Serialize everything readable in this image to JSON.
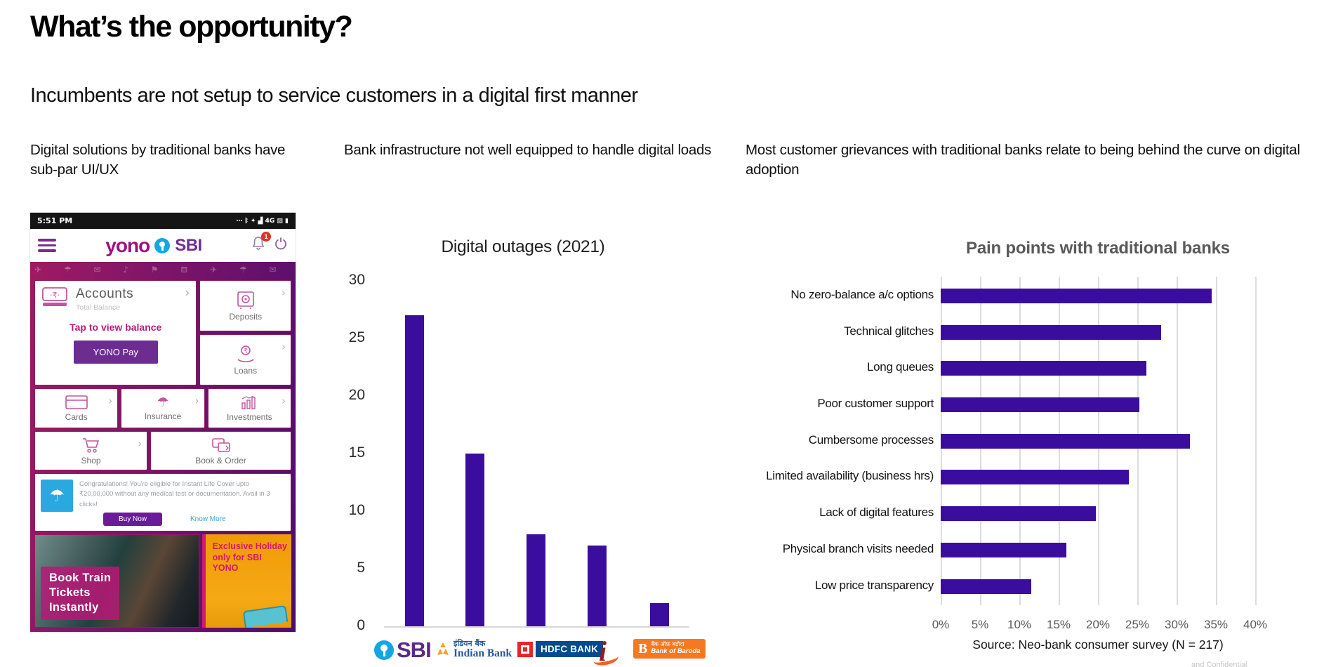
{
  "page": {
    "title": "What’s the opportunity?",
    "subtitle": "Incumbents are not setup to service customers in a digital first manner",
    "watermark": "and Confidential"
  },
  "columns": {
    "left_header": "Digital solutions by traditional banks have sub-par UI/UX",
    "middle_header": "Bank infrastructure not well equipped to handle digital loads",
    "right_header": "Most customer grievances with traditional banks relate to being behind the curve on digital adoption"
  },
  "phone": {
    "status": {
      "time": "5:51 PM",
      "icons": "⋯ ᛒ ✦ ▟ 4G ▨ ▮"
    },
    "header": {
      "brand": "yono",
      "bank": "SBI",
      "badge": "1"
    },
    "accounts": {
      "title": "Accounts",
      "subtitle": "Total Balance",
      "tap": "Tap to view balance",
      "pay_button": "YONO Pay",
      "chevron": "›"
    },
    "tiles": {
      "deposits": "Deposits",
      "loans": "Loans",
      "cards": "Cards",
      "insurance": "Insurance",
      "investments": "Investments",
      "shop": "Shop",
      "book": "Book & Order",
      "chevron": "›"
    },
    "offer": {
      "icon_glyph": "☂",
      "text": "Congratulations! You're eligible for Instant Life Cover upto ₹20,00,000 without any medical test or documentation. Avail in 3 clicks!",
      "buy_button": "Buy Now",
      "know_link": "Know More"
    },
    "promos": {
      "train": "Book Train\nTickets\nInstantly",
      "holiday": "Exclusive Holiday\nonly for SBI YONO"
    }
  },
  "logos": {
    "sbi": "SBI",
    "indian_hi": "इंडियन बैंक",
    "indian_en": "Indian Bank",
    "hdfc": "HDFC BANK",
    "icici": "i",
    "bob_sym": "B",
    "bob_hi": "बैंक ऑफ़ बड़ौदा",
    "bob_en": "Bank of Baroda"
  },
  "colors": {
    "bar": "#3b0d9e",
    "gridline": "#dcdcdc",
    "yono_magenta": "#a1117e",
    "sbi_blue": "#12a7e3",
    "hdfc_navy": "#004a8f",
    "bob_orange": "#f47920"
  },
  "chart_data": [
    {
      "type": "bar",
      "title": "Digital outages (2021)",
      "categories": [
        "SBI",
        "Indian Bank",
        "HDFC Bank",
        "ICICI Bank",
        "Bank of Baroda"
      ],
      "values": [
        27,
        15,
        8,
        7,
        2
      ],
      "xlabel": "",
      "ylabel": "",
      "ylim": [
        0,
        30
      ],
      "yticks": [
        0,
        5,
        10,
        15,
        20,
        25,
        30
      ],
      "grid": false,
      "bar_color": "#3b0d9e"
    },
    {
      "type": "bar-horizontal",
      "title": "Pain points with traditional banks",
      "categories": [
        "No zero-balance a/c options",
        "Technical glitches",
        "Long queues",
        "Poor customer support",
        "Cumbersome processes",
        "Limited availability (business hrs)",
        "Lack of digital features",
        "Physical branch visits needed",
        "Low price transparency"
      ],
      "values": [
        34.5,
        28,
        26.2,
        25.3,
        31.7,
        23.9,
        19.7,
        16,
        11.5
      ],
      "xlim": [
        0,
        40
      ],
      "xticks": [
        "0%",
        "5%",
        "10%",
        "15%",
        "20%",
        "25%",
        "30%",
        "35%",
        "40%"
      ],
      "grid": true,
      "legend": "none",
      "bar_color": "#3b0d9e",
      "source": "Source: Neo-bank consumer survey (N = 217)"
    }
  ]
}
